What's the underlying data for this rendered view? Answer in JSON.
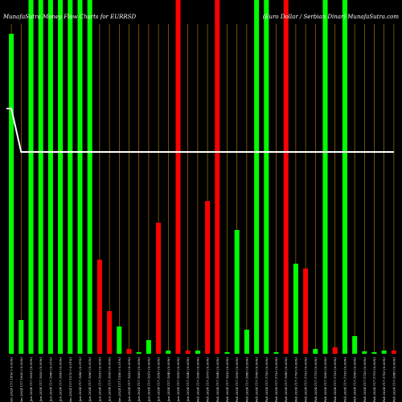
{
  "chart_data": {
    "type": "bar",
    "title_left": "MunafaSutra Money Flow Charts for EURRSD",
    "title_right": "(Euro Dollar / Serbian Dinar) MunafaSutra.com",
    "ylim": [
      0,
      440
    ],
    "colors": {
      "up": "#00ff00",
      "down": "#ff0000",
      "grid": "#b8860b",
      "line": "#ffffff",
      "background": "#000000"
    },
    "line_y": [
      305,
      251,
      251,
      251,
      251,
      251,
      251,
      251,
      251,
      251,
      251,
      251,
      251,
      251,
      251,
      251,
      251,
      251,
      251,
      251,
      251,
      251,
      251,
      251,
      251,
      251,
      251,
      251,
      251,
      251,
      251,
      251,
      251,
      251,
      251,
      251,
      251,
      251,
      251,
      251
    ],
    "categories": [
      "Fri 05 Jan 2024 117.1850 (-0.03%)",
      "Mon 08 Jan 2024 117.1620 (-0.02%)",
      "Tue 09 Jan 2024 117.1620 (0.00%)",
      "Wed 10 Jan 2024 117.1620 (0.00%)",
      "Thu 11 Jan 2024 117.1680 (0.01%)",
      "Fri 12 Jan 2024 117.1690 (0.00%)",
      "Mon 15 Jan 2024 117.1570 (-0.01%)",
      "Tue 16 Jan 2024 117.1680 (0.01%)",
      "Wed 17 Jan 2024 117.1660 (0.00%)",
      "Thu 18 Jan 2024 117.1620 (0.00%)",
      "Fri 19 Jan 2024 117.1650 (0.00%)",
      "Mon 22 Jan 2024 117.1580 (-0.01%)",
      "Tue 23 Jan 2024 117.1620 (0.00%)",
      "Wed 24 Jan 2024 117.1600 (0.00%)",
      "Thu 25 Jan 2024 117.1610 (0.00%)",
      "Fri 26 Jan 2024 117.1650 (0.00%)",
      "Mon 29 Jan 2024 117.1640 (0.00%)",
      "Tue 30 Jan 2024 117.1650 (0.00%)",
      "Wed 31 Jan 2024 117.1640 (0.00%)",
      "Thu 01 Feb 2024 117.1660 (0.00%)",
      "Fri 02 Feb 2024 117.1670 (0.00%)",
      "Mon 05 Feb 2024 117.1640 (0.00%)",
      "Tue 06 Feb 2024 117.1630 (0.00%)",
      "Wed 07 Feb 2024 117.1650 (0.00%)",
      "Thu 08 Feb 2024 117.1680 (0.00%)",
      "Fri 09 Feb 2024 117.1690 (0.00%)",
      "Mon 12 Feb 2024 117.1700 (0.00%)",
      "Tue 13 Feb 2024 117.1720 (0.00%)",
      "Wed 14 Feb 2024 117.1680 (0.00%)",
      "Thu 15 Feb 2024 117.1700 (0.00%)",
      "Fri 16 Feb 2024 117.1720 (0.00%)",
      "Mon 19 Feb 2024 117.1710 (0.00%)",
      "Tue 20 Feb 2024 117.1690 (0.00%)",
      "Wed 21 Feb 2024 117.1720 (0.00%)",
      "Thu 22 Feb 2024 117.1730 (0.00%)",
      "Fri 23 Feb 2024 117.1690 (0.00%)",
      "Mon 26 Feb 2024 117.1720 (0.00%)",
      "Tue 27 Feb 2024 117.1710 (0.00%)",
      "Wed 28 Feb 2024 117.1700 (0.00%)",
      "Thu 29 Feb 2024 117.1680 (0.00%)"
    ],
    "series": [
      {
        "values": [
          398,
          42,
          440,
          440,
          440,
          440,
          440,
          440,
          440,
          117,
          53,
          34,
          6,
          2,
          17,
          163,
          4,
          440,
          4,
          4,
          190,
          440,
          2,
          154,
          30,
          440,
          440,
          2,
          440,
          112,
          106,
          6,
          440,
          8,
          440,
          22,
          3,
          2,
          4,
          4
        ],
        "direction": [
          "up",
          "up",
          "up",
          "up",
          "up",
          "up",
          "up",
          "up",
          "up",
          "down",
          "down",
          "up",
          "down",
          "up",
          "up",
          "down",
          "up",
          "down",
          "down",
          "up",
          "down",
          "down",
          "up",
          "up",
          "up",
          "up",
          "up",
          "up",
          "down",
          "up",
          "down",
          "up",
          "up",
          "down",
          "up",
          "up",
          "up",
          "up",
          "up",
          "down"
        ]
      }
    ]
  }
}
